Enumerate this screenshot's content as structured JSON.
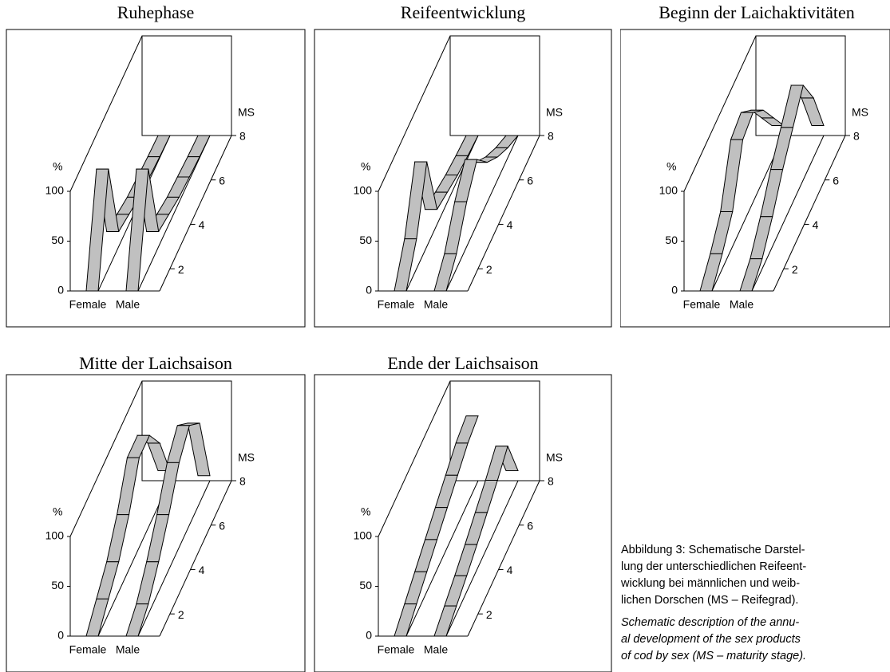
{
  "chart_data": [
    {
      "type": "ribbon",
      "title": "Ruhephase",
      "ylabel": "%",
      "zlabel": "MS",
      "ylim": [
        0,
        100
      ],
      "yticks": [
        0,
        50,
        100
      ],
      "zlim": [
        1,
        8
      ],
      "zticks": [
        2,
        4,
        6,
        8
      ],
      "z": [
        1,
        2,
        3,
        4,
        5,
        6,
        7,
        8
      ],
      "series": [
        {
          "name": "Female",
          "color": "#c0c0c0",
          "values": [
            0,
            100,
            15,
            10,
            5,
            3,
            1,
            0
          ]
        },
        {
          "name": "Male",
          "color": "#c0c0c0",
          "values": [
            0,
            100,
            15,
            10,
            5,
            3,
            1,
            0
          ]
        }
      ]
    },
    {
      "type": "ribbon",
      "title": "Reifeentwicklung",
      "ylabel": "%",
      "zlabel": "MS",
      "ylim": [
        0,
        100
      ],
      "yticks": [
        0,
        50,
        100
      ],
      "zlim": [
        1,
        8
      ],
      "zticks": [
        2,
        4,
        6,
        8
      ],
      "z": [
        1,
        2,
        3,
        4,
        5,
        6,
        7,
        8
      ],
      "series": [
        {
          "name": "Female",
          "color": "#c0c0c0",
          "values": [
            0,
            30,
            85,
            15,
            10,
            5,
            2,
            0
          ]
        },
        {
          "name": "Male",
          "color": "#c0c0c0",
          "values": [
            0,
            15,
            45,
            65,
            40,
            23,
            10,
            0
          ]
        }
      ]
    },
    {
      "type": "ribbon",
      "title": "Beginn der Laichaktivitäten",
      "ylabel": "%",
      "zlabel": "MS",
      "ylim": [
        0,
        100
      ],
      "yticks": [
        0,
        50,
        100
      ],
      "zlim": [
        1,
        8
      ],
      "zticks": [
        2,
        4,
        6,
        8
      ],
      "z": [
        1,
        2,
        3,
        4,
        5,
        6,
        7,
        8
      ],
      "series": [
        {
          "name": "Female",
          "color": "#c0c0c0",
          "values": [
            0,
            15,
            35,
            85,
            90,
            70,
            40,
            10
          ]
        },
        {
          "name": "Male",
          "color": "#c0c0c0",
          "values": [
            0,
            10,
            30,
            55,
            75,
            95,
            60,
            10
          ]
        }
      ]
    },
    {
      "type": "ribbon",
      "title": "Mitte der Laichsaison",
      "ylabel": "%",
      "zlabel": "MS",
      "ylim": [
        0,
        100
      ],
      "yticks": [
        0,
        50,
        100
      ],
      "zlim": [
        1,
        8
      ],
      "zticks": [
        2,
        4,
        6,
        8
      ],
      "z": [
        1,
        2,
        3,
        4,
        5,
        6,
        7,
        8
      ],
      "series": [
        {
          "name": "Female",
          "color": "#c0c0c0",
          "values": [
            0,
            15,
            30,
            55,
            90,
            90,
            60,
            10
          ]
        },
        {
          "name": "Male",
          "color": "#c0c0c0",
          "values": [
            0,
            10,
            30,
            55,
            85,
            100,
            80,
            5
          ]
        }
      ]
    },
    {
      "type": "ribbon",
      "title": "Ende der Laichsaison",
      "ylabel": "%",
      "zlabel": "MS",
      "ylim": [
        0,
        100
      ],
      "yticks": [
        0,
        50,
        100
      ],
      "zlim": [
        1,
        8
      ],
      "zticks": [
        2,
        4,
        6,
        8
      ],
      "z": [
        1,
        2,
        3,
        4,
        5,
        6,
        7,
        8
      ],
      "series": [
        {
          "name": "Female",
          "color": "#c0c0c0",
          "values": [
            0,
            10,
            20,
            30,
            40,
            50,
            60,
            65
          ]
        },
        {
          "name": "Male",
          "color": "#c0c0c0",
          "values": [
            0,
            8,
            16,
            25,
            35,
            45,
            57,
            10
          ]
        }
      ]
    }
  ],
  "caption": {
    "de": [
      "Abbildung 3: Schematische Darstel-",
      "lung der unterschiedlichen Reifeent-",
      "wicklung bei männlichen und weib-",
      "lichen Dorschen (MS – Reifegrad)."
    ],
    "en": [
      "Schematic description of the annu-",
      "al development of the sex products",
      "of cod by sex (MS – maturity stage)."
    ]
  }
}
